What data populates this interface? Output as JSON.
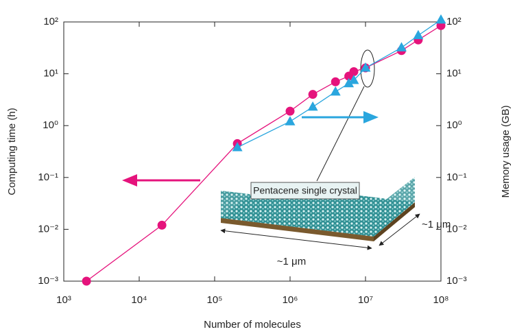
{
  "chart_data": {
    "type": "line",
    "x_label": "Number of molecules",
    "y_label": "Computing time (h)",
    "y2_label": "Memory usage (GB)",
    "log_x": true,
    "log_y": true,
    "xlim": [
      1000,
      100000000
    ],
    "xticks": [
      {
        "value": 1000,
        "label": "10³"
      },
      {
        "value": 10000,
        "label": "10⁴"
      },
      {
        "value": 100000,
        "label": "10⁵"
      },
      {
        "value": 1000000,
        "label": "10⁶"
      },
      {
        "value": 10000000,
        "label": "10⁷"
      },
      {
        "value": 100000000,
        "label": "10⁸"
      }
    ],
    "ylim": [
      0.001,
      100
    ],
    "yticks": [
      {
        "value": 0.001,
        "label": "10⁻³"
      },
      {
        "value": 0.01,
        "label": "10⁻²"
      },
      {
        "value": 0.1,
        "label": "10⁻¹"
      },
      {
        "value": 1,
        "label": "10⁰"
      },
      {
        "value": 10,
        "label": "10¹"
      },
      {
        "value": 100,
        "label": "10²"
      }
    ],
    "y2lim": [
      0.001,
      100
    ],
    "y2ticks": [
      {
        "value": 0.001,
        "label": "10⁻³"
      },
      {
        "value": 0.01,
        "label": "10⁻²"
      },
      {
        "value": 0.1,
        "label": "10⁻¹"
      },
      {
        "value": 1,
        "label": "10⁰"
      },
      {
        "value": 10,
        "label": "10¹"
      },
      {
        "value": 100,
        "label": "10²"
      }
    ],
    "series": [
      {
        "color": "#e5137c",
        "marker": "circle",
        "x": [
          2000,
          20000,
          200000,
          1000000,
          2000000,
          4000000,
          6000000,
          7000000,
          10000000,
          30000000,
          50000000,
          100000000
        ],
        "values": [
          0.001,
          0.012,
          0.45,
          1.9,
          4,
          7,
          9,
          11,
          13,
          28,
          45,
          85
        ]
      },
      {
        "color": "#2aa6de",
        "marker": "triangle",
        "axis": "y2",
        "x": [
          200000,
          1000000,
          2000000,
          4000000,
          6000000,
          7000000,
          10000000,
          30000000,
          50000000,
          100000000
        ],
        "values": [
          0.38,
          1.2,
          2.3,
          4.5,
          6.5,
          7.5,
          13,
          32,
          55,
          110
        ]
      }
    ],
    "annotations": [
      "Pentacene single crystal",
      "~1 μm",
      "~1 μm"
    ]
  }
}
